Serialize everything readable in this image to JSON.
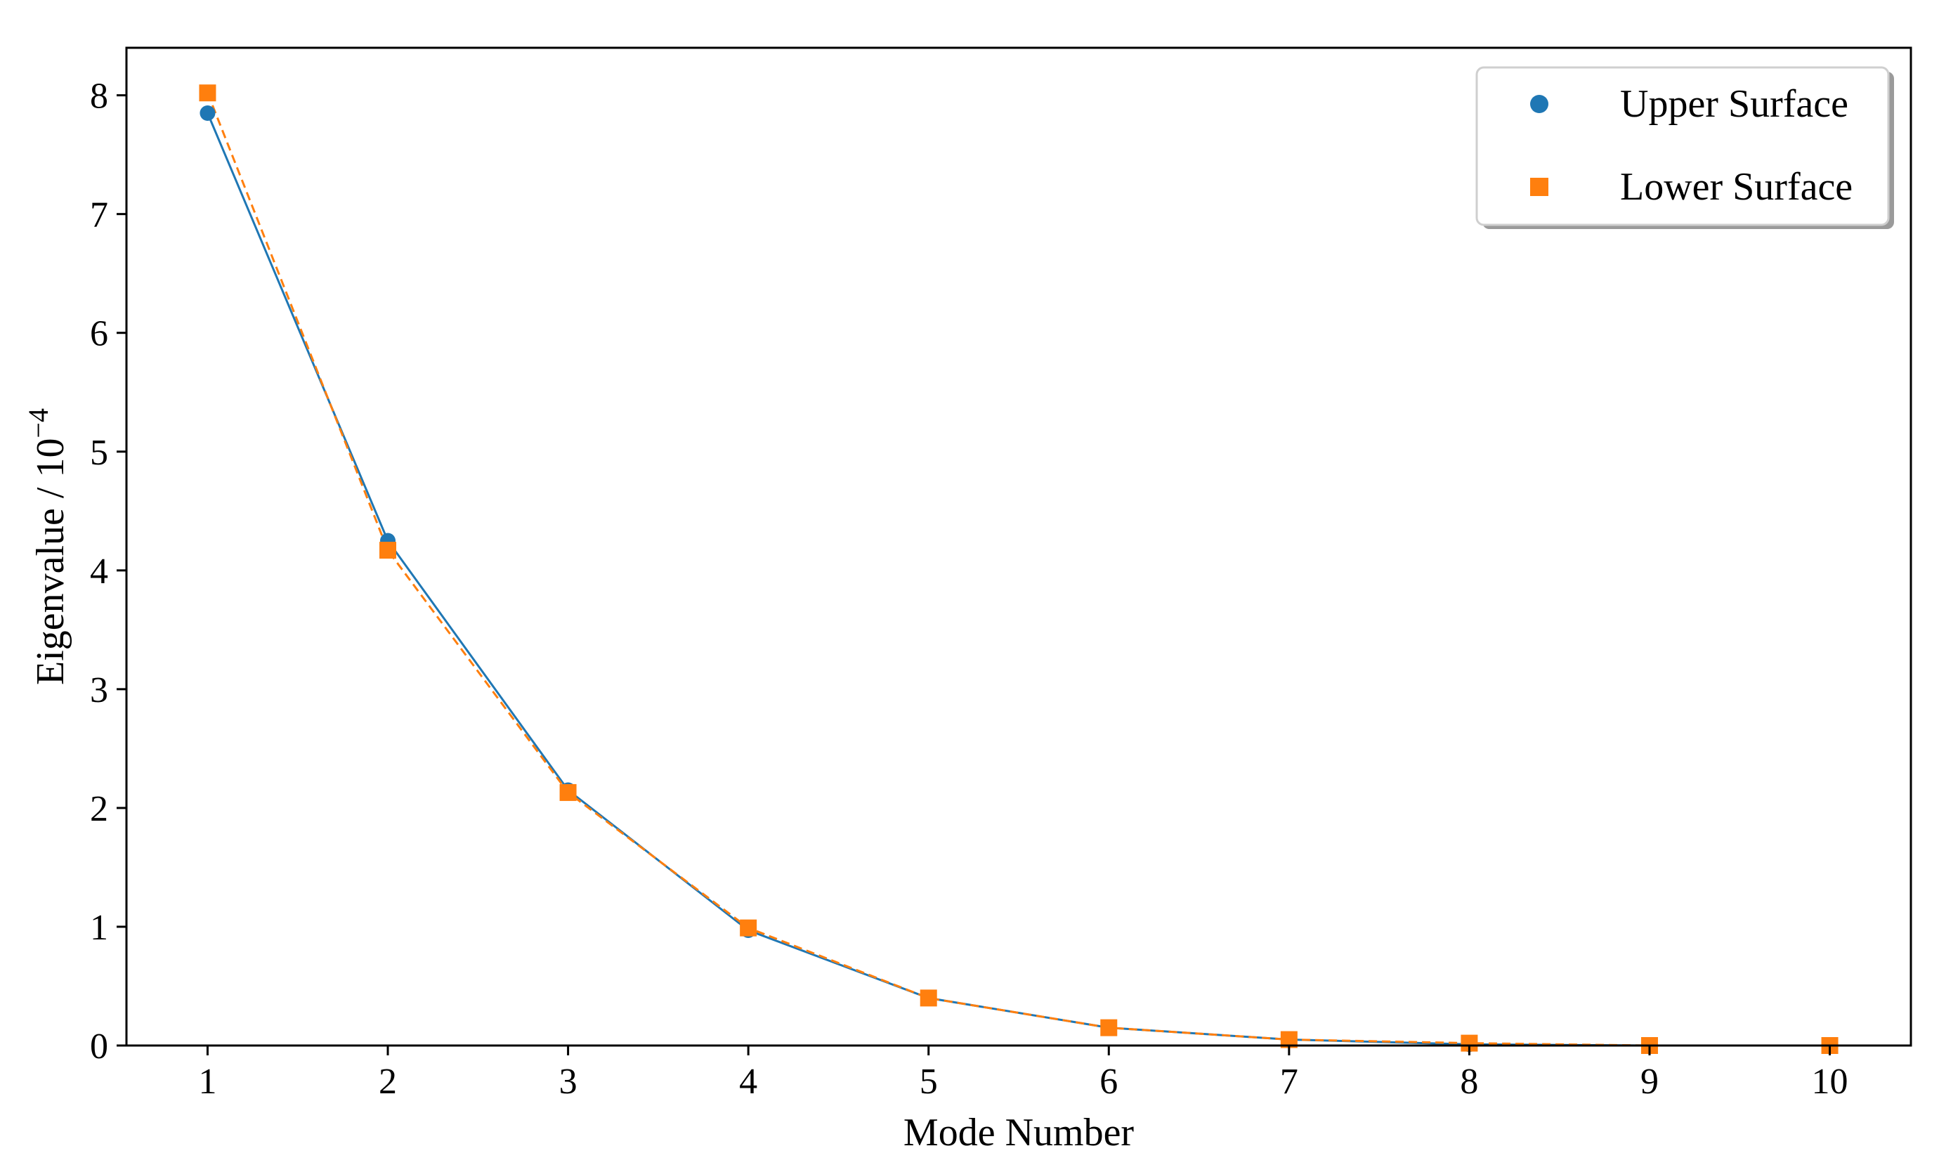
{
  "chart_data": {
    "type": "line",
    "title": "",
    "xlabel": "Mode Number",
    "ylabel_main": "Eigenvalue / 10",
    "ylabel_exponent": "−4",
    "x": [
      1,
      2,
      3,
      4,
      5,
      6,
      7,
      8,
      9,
      10
    ],
    "xlim": [
      0.55,
      10.45
    ],
    "ylim": [
      0,
      8.4
    ],
    "xticks": [
      "1",
      "2",
      "3",
      "4",
      "5",
      "6",
      "7",
      "8",
      "9",
      "10"
    ],
    "yticks": [
      "0",
      "1",
      "2",
      "3",
      "4",
      "5",
      "6",
      "7",
      "8"
    ],
    "grid": false,
    "legend_position": "top-right",
    "series": [
      {
        "name": "Upper Surface",
        "values": [
          7.85,
          4.25,
          2.15,
          0.97,
          0.4,
          0.15,
          0.05,
          0.01,
          0.0,
          0.0
        ],
        "color": "#1f77b4",
        "marker": "circle",
        "line_style": "solid"
      },
      {
        "name": "Lower Surface",
        "values": [
          8.02,
          4.17,
          2.13,
          0.99,
          0.4,
          0.15,
          0.05,
          0.02,
          0.0,
          0.0
        ],
        "color": "#ff7f0e",
        "marker": "square",
        "line_style": "dashed"
      }
    ]
  }
}
